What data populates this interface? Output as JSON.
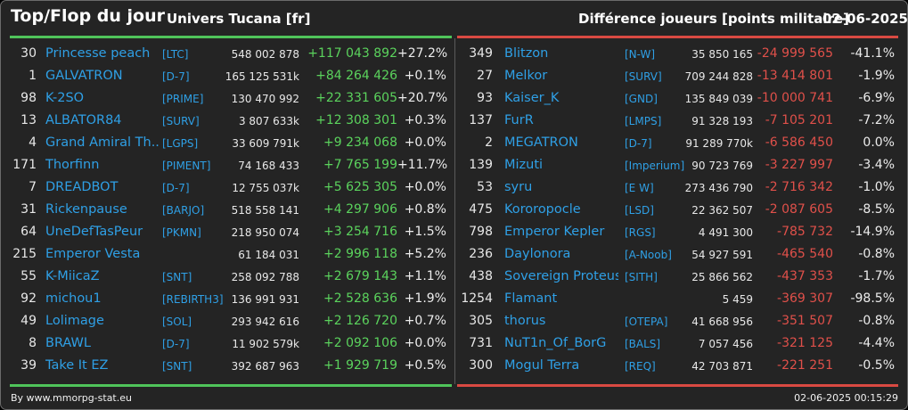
{
  "header": {
    "title": "Top/Flop du jour",
    "universe": "Univers Tucana [fr]",
    "metric": "Différence joueurs [points militaire]",
    "date": "02-06-2025"
  },
  "colors": {
    "gain": "#5bd35d",
    "loss": "#e0504a",
    "link": "#2fa0e6",
    "background": "#242424"
  },
  "top": [
    {
      "rank": "30",
      "name": "Princesse peach",
      "alliance": "[LTC]",
      "points": "548 002 878",
      "change": "+117 043 892",
      "percent": "+27.2%"
    },
    {
      "rank": "1",
      "name": "GALVATRON",
      "alliance": "[D-7]",
      "points": "165 125 531k",
      "change": "+84 264 426",
      "percent": "+0.1%"
    },
    {
      "rank": "98",
      "name": "K-2SO",
      "alliance": "[PRIME]",
      "points": "130 470 992",
      "change": "+22 331 605",
      "percent": "+20.7%"
    },
    {
      "rank": "13",
      "name": "ALBATOR84",
      "alliance": "[SURV]",
      "points": "3 807 633k",
      "change": "+12 308 301",
      "percent": "+0.3%"
    },
    {
      "rank": "4",
      "name": "Grand Amiral Th...",
      "alliance": "[LGPS]",
      "points": "33 609 791k",
      "change": "+9 234 068",
      "percent": "+0.0%"
    },
    {
      "rank": "171",
      "name": "Thorfinn",
      "alliance": "[PIMENT]",
      "points": "74 168 433",
      "change": "+7 765 199",
      "percent": "+11.7%"
    },
    {
      "rank": "7",
      "name": "DREADBOT",
      "alliance": "[D-7]",
      "points": "12 755 037k",
      "change": "+5 625 305",
      "percent": "+0.0%"
    },
    {
      "rank": "31",
      "name": "Rickenpause",
      "alliance": "[BARJO]",
      "points": "518 558 141",
      "change": "+4 297 906",
      "percent": "+0.8%"
    },
    {
      "rank": "64",
      "name": "UneDefTasPeur",
      "alliance": "[PKMN]",
      "points": "218 950 074",
      "change": "+3 254 716",
      "percent": "+1.5%"
    },
    {
      "rank": "215",
      "name": "Emperor Vesta",
      "alliance": "",
      "points": "61 184 031",
      "change": "+2 996 118",
      "percent": "+5.2%"
    },
    {
      "rank": "55",
      "name": "K-MiicaZ",
      "alliance": "[SNT]",
      "points": "258 092 788",
      "change": "+2 679 143",
      "percent": "+1.1%"
    },
    {
      "rank": "92",
      "name": "michou1",
      "alliance": "[REBIRTH3]",
      "points": "136 991 931",
      "change": "+2 528 636",
      "percent": "+1.9%"
    },
    {
      "rank": "49",
      "name": "Lolimage",
      "alliance": "[SOL]",
      "points": "293 942 616",
      "change": "+2 126 720",
      "percent": "+0.7%"
    },
    {
      "rank": "8",
      "name": "BRAWL",
      "alliance": "[D-7]",
      "points": "11 902 579k",
      "change": "+2 092 106",
      "percent": "+0.0%"
    },
    {
      "rank": "39",
      "name": "Take It EZ",
      "alliance": "[SNT]",
      "points": "392 687 963",
      "change": "+1 929 719",
      "percent": "+0.5%"
    }
  ],
  "flop": [
    {
      "rank": "349",
      "name": "Blitzon",
      "alliance": "[N-W]",
      "points": "35 850 165",
      "change": "-24 999 565",
      "percent": "-41.1%"
    },
    {
      "rank": "27",
      "name": "Melkor",
      "alliance": "[SURV]",
      "points": "709 244 828",
      "change": "-13 414 801",
      "percent": "-1.9%"
    },
    {
      "rank": "93",
      "name": "Kaiser_K",
      "alliance": "[GND]",
      "points": "135 849 039",
      "change": "-10 000 741",
      "percent": "-6.9%"
    },
    {
      "rank": "137",
      "name": "FurR",
      "alliance": "[LMPS]",
      "points": "91 328 193",
      "change": "-7 105 201",
      "percent": "-7.2%"
    },
    {
      "rank": "2",
      "name": "MEGATRON",
      "alliance": "[D-7]",
      "points": "91 289 770k",
      "change": "-6 586 450",
      "percent": "0.0%"
    },
    {
      "rank": "139",
      "name": "Mizuti",
      "alliance": "[Imperium]",
      "points": "90 723 769",
      "change": "-3 227 997",
      "percent": "-3.4%"
    },
    {
      "rank": "53",
      "name": "syru",
      "alliance": "[E W]",
      "points": "273 436 790",
      "change": "-2 716 342",
      "percent": "-1.0%"
    },
    {
      "rank": "475",
      "name": "Kororopocle",
      "alliance": "[LSD]",
      "points": "22 362 507",
      "change": "-2 087 605",
      "percent": "-8.5%"
    },
    {
      "rank": "798",
      "name": "Emperor Kepler",
      "alliance": "[RGS]",
      "points": "4 491 300",
      "change": "-785 732",
      "percent": "-14.9%"
    },
    {
      "rank": "236",
      "name": "Daylonora",
      "alliance": "[A-Noob]",
      "points": "54 927 591",
      "change": "-465 540",
      "percent": "-0.8%"
    },
    {
      "rank": "438",
      "name": "Sovereign Proteus",
      "alliance": "[SITH]",
      "points": "25 866 562",
      "change": "-437 353",
      "percent": "-1.7%"
    },
    {
      "rank": "1254",
      "name": "Flamant",
      "alliance": "",
      "points": "5 459",
      "change": "-369 307",
      "percent": "-98.5%"
    },
    {
      "rank": "305",
      "name": "thorus",
      "alliance": "[OTEPA]",
      "points": "41 668 956",
      "change": "-351 507",
      "percent": "-0.8%"
    },
    {
      "rank": "731",
      "name": "NuT1n_Of_BorG",
      "alliance": "[BALS]",
      "points": "7 057 456",
      "change": "-321 125",
      "percent": "-4.4%"
    },
    {
      "rank": "300",
      "name": "Mogul Terra",
      "alliance": "[REQ]",
      "points": "42 703 871",
      "change": "-221 251",
      "percent": "-0.5%"
    }
  ],
  "footer": {
    "byline": "By www.mmorpg-stat.eu",
    "timestamp": "02-06-2025 00:15:29"
  }
}
